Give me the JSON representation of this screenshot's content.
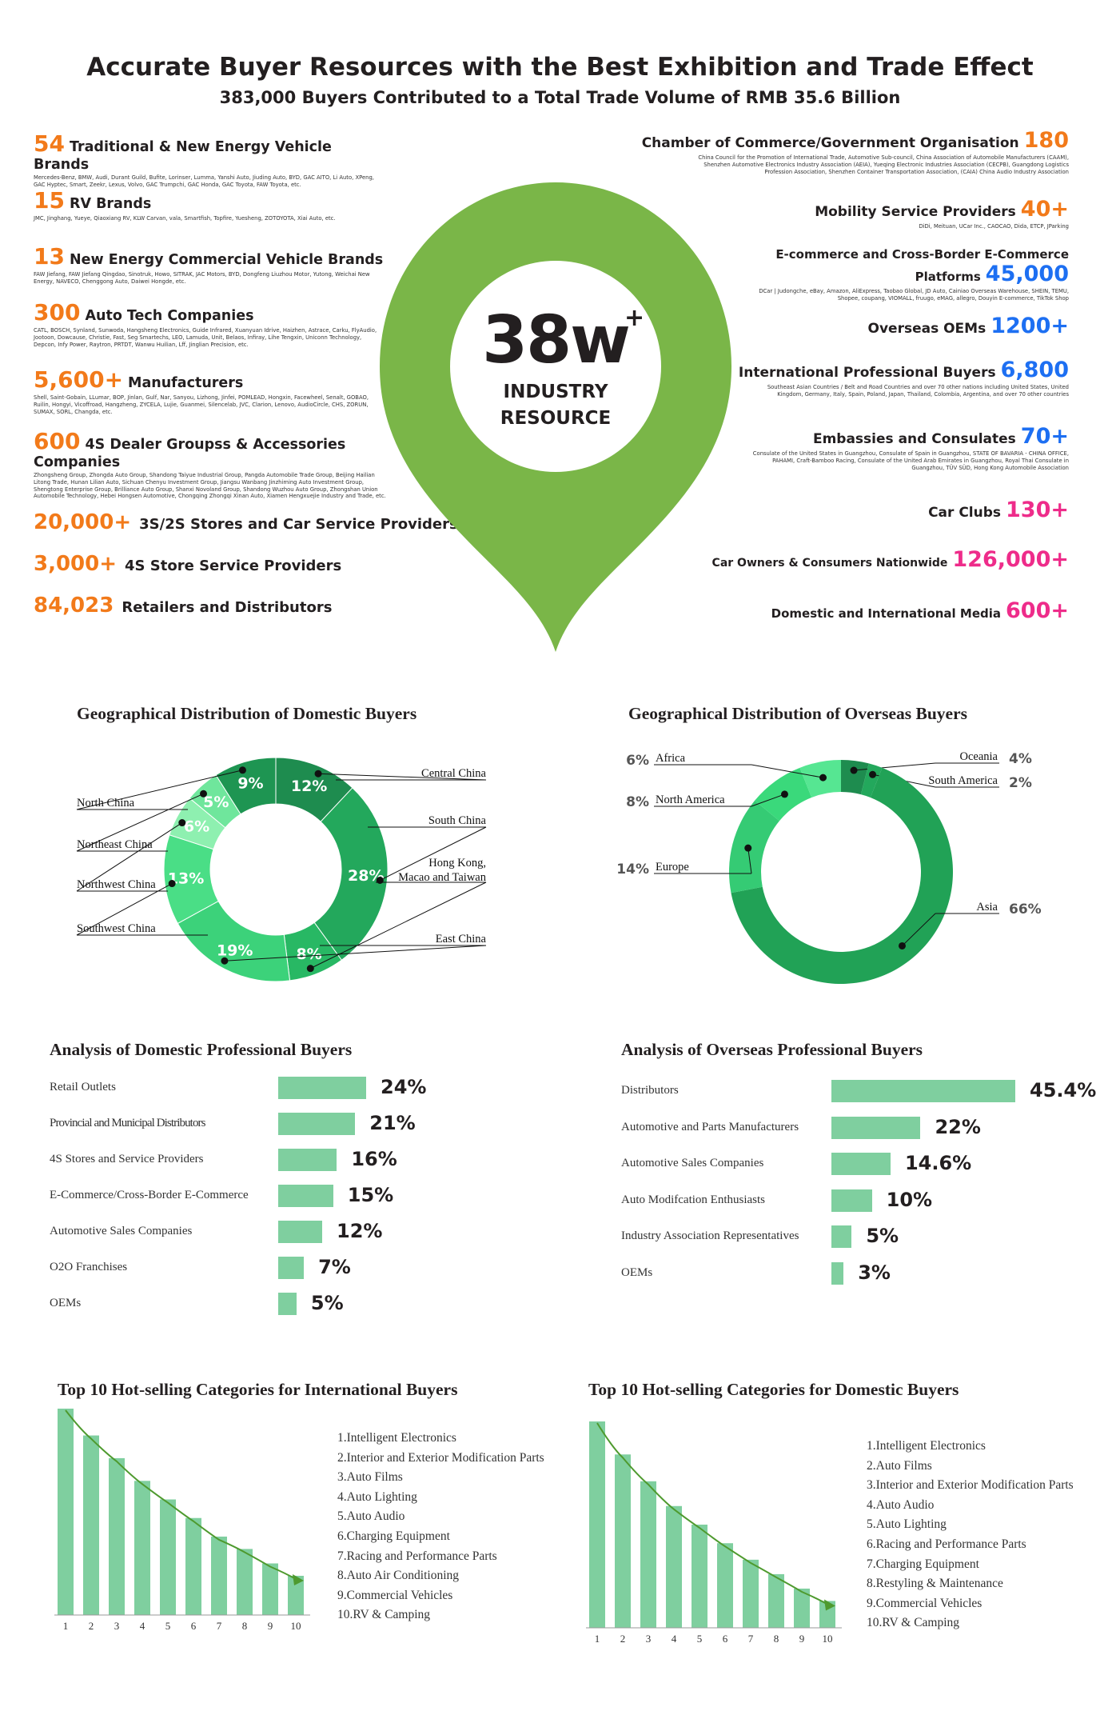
{
  "header": {
    "title": "Accurate Buyer Resources with the Best Exhibition and Trade Effect",
    "subtitle": "383,000 Buyers Contributed to a Total Trade Volume of RMB 35.6 Billion"
  },
  "center": {
    "value": "38w",
    "sup": "+",
    "line1": "INDUSTRY",
    "line2": "RESOURCE"
  },
  "left_items": [
    {
      "num": "54",
      "label": "Traditional & New Energy Vehicle Brands",
      "desc": "Mercedes-Benz, BMW, Audi, Durant Guild, Bufite, Lorinser, Lumma, Yanshi Auto, Jiuding Auto, BYD, GAC AITO, Li Auto, XPeng, GAC Hyptec, Smart, Zeekr, Lexus, Volvo, GAC Trumpchi, GAC Honda, GAC Toyota, FAW Toyota, etc."
    },
    {
      "num": "15",
      "label": "RV Brands",
      "desc": "JMC, Jinghang, Yueye, Qiaoxiang RV, KLW Carvan, vala, Smartfish, Topfire,  Yuesheng, ZOTOYOTA, Xiai Auto, etc."
    },
    {
      "num": "13",
      "label": "New Energy Commercial Vehicle Brands",
      "desc": "FAW Jiefang, FAW Jiefang Qingdao, Sinotruk, Howo, SITRAK, JAC Motors, BYD, Dongfeng Liuzhou Motor, Yutong, Weichai New Energy, NAVECO, Chenggong Auto, Daiwei Hongde, etc."
    },
    {
      "num": "300",
      "label": "Auto Tech Companies",
      "desc": "CATL, BOSCH, Synland, Sunwoda, Hangsheng Electronics, Guide Infrared, Xuanyuan Idrive, Haizhen, Astrace, Carku, FlyAudio, Jootoon, Dowcause, Christie, Fast, Seg Smartechs, LEO, Lamuda, Unit, Belaos, Infiray, Lihe Tengxin, Uniconn Technology, Depcon, Infy Power, Raytron, PRTDT, Wanwu Huilian, Lff, Jinglian Precision, etc."
    },
    {
      "num": "5,600+",
      "label": "Manufacturers",
      "desc": "Shell, Saint-Gobain, LLumar, BOP, Jinlan, Gulf, Nar, Sanyou, Lizhong, Jinfei, POMLEAD, Hongxin, Facewheel, Senalt, GOBAO, Ruilin, Hongyi, Vicoffroad, Hangzheng, ZYCELA, Lujie, Guanmei, Silencelab, JVC, Clarion, Lenovo, AudioCircle, CHS, ZORUN, SUMAX, SORL, Changda, etc."
    },
    {
      "num": "600",
      "label": "4S Dealer Groupss & Accessories Companies",
      "desc": "Zhongsheng Group, Zhongda Auto Group, Shandong Taiyue Industrial Group, Pangda Automobile Trade Group, Beijing Hailian Litong Trade, Hunan Lilian Auto, Sichuan Chenyu Investment Group, Jiangsu Wanbang Jinzhiming Auto Investment Group, Shengtong Enterprise Group, Brilliance Auto Group, Shanxi Novoland Group, Shandong Wuzhou Auto Group, Zhongshan Union Automobile Technology, Hebei Hongsen Automotive, Chongqing Zhongqi Xinan Auto, Xiamen Hengxuejie Industry and Trade, etc."
    },
    {
      "num": "20,000+",
      "label": "3S/2S Stores and Car Service Providers",
      "desc": ""
    },
    {
      "num": "3,000+",
      "label": "4S Store Service Providers",
      "desc": ""
    },
    {
      "num": "84,023",
      "label": "Retailers and Distributors",
      "desc": ""
    }
  ],
  "right_items": [
    {
      "num": "180",
      "label": "Chamber of Commerce/Government Organisation",
      "color": "#f27a1a",
      "desc": "China Council for the Promotion of International Trade, Automotive Sub-council, China Association of Automobile Manufacturers (CAAM), Shenzhen Automotive Electronics Industry Association (AEIA), Yueqing Electronic Industries Association (CECPB), Guangdong Logistics Profession Association, Shenzhen Container Transportation Association, (CAIA) China Audio Industry Association"
    },
    {
      "num": "40+",
      "label": "Mobility Service Providers",
      "color": "#f27a1a",
      "desc": "DiDi, Meituan, UCar Inc., CAOCAO, Dida, ETCP, JParking"
    },
    {
      "num": "45,000",
      "label": "E-commerce and Cross-Border E-Commerce Platforms",
      "color": "#1d6ff2",
      "desc": "DCar | Judongche, eBay, Amazon, AliExpress, Taobao Global, JD Auto, Cainiao Overseas Warehouse, SHEIN, TEMU, Shopee, coupang, VIOMALL, fruugo, eMAG, allegro, Douyin E-commerce, TikTok Shop"
    },
    {
      "num": "1200+",
      "label": "Overseas OEMs",
      "color": "#1d6ff2",
      "desc": ""
    },
    {
      "num": "6,800",
      "label": "International Professional Buyers",
      "color": "#1d6ff2",
      "desc": "Southeast Asian Countries / Belt and Road Countries and over 70 other nations including United States, United Kingdom, Germany, Italy, Spain, Poland, Japan, Thailand, Colombia, Argentina, and over 70 other countries"
    },
    {
      "num": "70+",
      "label": "Embassies and Consulates",
      "color": "#1d6ff2",
      "desc": "Consulate of the United States in Guangzhou, Consulate of Spain in Guangzhou, STATE OF BAVARIA - CHINA OFFICE, PAHAMI, Craft-Bamboo Racing, Consulate of the United Arab Emirates in Guangzhou, Royal Thai Consulate in Guangzhou, TÜV SÜD, Hong Kong Automobile Association"
    },
    {
      "num": "130+",
      "label": "Car Clubs",
      "color": "#ee2c8a",
      "desc": ""
    },
    {
      "num": "126,000+",
      "label": "Car Owners & Consumers Nationwide",
      "color": "#ee2c8a",
      "desc": ""
    },
    {
      "num": "600+",
      "label": "Domestic and International Media",
      "color": "#ee2c8a",
      "desc": ""
    }
  ],
  "chart_data": [
    {
      "type": "pie",
      "title": "Geographical Distribution of Domestic Buyers",
      "categories": [
        "Central China",
        "South China",
        "Hong Kong, Macao and Taiwan",
        "East China",
        "Southwest China",
        "Northwest China",
        "Northeast China",
        "North China"
      ],
      "values": [
        12,
        28,
        8,
        19,
        13,
        6,
        5,
        9
      ],
      "value_suffix": "%",
      "colors": [
        "#1e8c4f",
        "#23a85c",
        "#28b864",
        "#3cd27a",
        "#4ade86",
        "#8ef0b0",
        "#6fe69c",
        "#1e9552"
      ]
    },
    {
      "type": "pie",
      "title": "Geographical Distribution of Overseas Buyers",
      "categories": [
        "Oceania",
        "South America",
        "Asia",
        "Europe",
        "North America",
        "Africa"
      ],
      "values": [
        4,
        2,
        66,
        14,
        8,
        6
      ],
      "value_suffix": "%",
      "colors": [
        "#1e8c4f",
        "#23a85c",
        "#21a256",
        "#35cb74",
        "#3ad97b",
        "#56e692"
      ]
    },
    {
      "type": "bar",
      "title": "Analysis of Domestic Professional Buyers",
      "categories": [
        "Retail Outlets",
        "Provincial and Municipal Distributors",
        "4S Stores and Service Providers",
        "E-Commerce/Cross-Border E-Commerce",
        "Automotive Sales Companies",
        "O2O Franchises",
        "OEMs"
      ],
      "values": [
        24,
        21,
        16,
        15,
        12,
        7,
        5
      ],
      "value_labels": [
        "24%",
        "21%",
        "16%",
        "15%",
        "12%",
        "7%",
        "5%"
      ]
    },
    {
      "type": "bar",
      "title": "Analysis of Overseas Professional Buyers",
      "categories": [
        "Distributors",
        "Automotive and Parts Manufacturers",
        "Automotive Sales Companies",
        "Auto Modifcation Enthusiasts",
        "Industry Association Representatives",
        "OEMs"
      ],
      "values": [
        45.4,
        22,
        14.6,
        10,
        5,
        3
      ],
      "value_labels": [
        "45.4%",
        "22%",
        "14.6%",
        "10%",
        "5%",
        "3%"
      ]
    },
    {
      "type": "bar",
      "title": "Top 10 Hot-selling Categories for International Buyers",
      "x": [
        "1",
        "2",
        "3",
        "4",
        "5",
        "6",
        "7",
        "8",
        "9",
        "10"
      ],
      "values": [
        10,
        8.7,
        7.6,
        6.5,
        5.6,
        4.7,
        3.8,
        3.2,
        2.5,
        1.9
      ],
      "items": [
        "1.Intelligent Electronics",
        "2.Interior and Exterior Modification Parts",
        "3.Auto Films",
        "4.Auto Lighting",
        "5.Auto Audio",
        "6.Charging Equipment",
        "7.Racing and Performance Parts",
        "8.Auto Air Conditioning",
        "9.Commercial Vehicles",
        "10.RV & Camping"
      ]
    },
    {
      "type": "bar",
      "title": "Top 10 Hot-selling Categories for Domestic Buyers",
      "x": [
        "1",
        "2",
        "3",
        "4",
        "5",
        "6",
        "7",
        "8",
        "9",
        "10"
      ],
      "values": [
        10,
        8.4,
        7.1,
        5.9,
        5.0,
        4.1,
        3.3,
        2.6,
        1.9,
        1.3
      ],
      "items": [
        "1.Intelligent Electronics",
        "2.Auto Films",
        "3.Interior and Exterior Modification Parts",
        "4.Auto Audio",
        "5.Auto Lighting",
        "6.Racing and Performance Parts",
        "7.Charging Equipment",
        "8.Restyling & Maintenance",
        "9.Commercial Vehicles",
        "10.RV & Camping"
      ]
    }
  ]
}
